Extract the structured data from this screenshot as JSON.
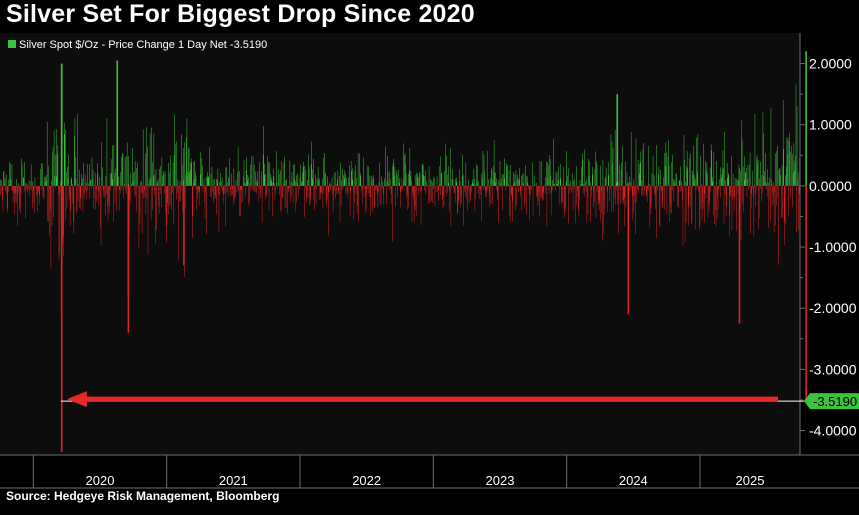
{
  "title": "Silver Set For Biggest Drop Since 2020",
  "source": "Source: Hedgeye Risk Management, Bloomberg",
  "colors": {
    "background": "#000000",
    "plot_background": "#0d0d0d",
    "up": "#3cc23c",
    "down": "#dd2323",
    "arrow": "#e62828",
    "reference_line": "#ffffff",
    "label_bg": "#3cc23c",
    "label_text": "#000000",
    "grid": "#6e6e6e",
    "axis_text": "#ffffff"
  },
  "chart_data": {
    "type": "bar",
    "title": "Silver Set For Biggest Drop Since 2020",
    "series": [
      {
        "name": "Silver Spot $/Oz - Price Change 1 Day Net",
        "last_value_label": "-3.5190",
        "last_value": -3.519
      }
    ],
    "legend": {
      "label": "Silver Spot $/Oz - Price Change 1 Day Net -3.5190",
      "placement": "top-left"
    },
    "y_ticks": [
      "2.0000",
      "1.0000",
      "0.0000",
      "-1.0000",
      "-2.0000",
      "-3.0000",
      "-4.0000"
    ],
    "y_tick_values": [
      2,
      1,
      0,
      -1,
      -2,
      -3,
      -4
    ],
    "ylim": [
      -4.4,
      2.5
    ],
    "x_tick_labels": [
      "2020",
      "2021",
      "2022",
      "2023",
      "2024",
      "2025"
    ],
    "x_range": [
      "2019-10",
      "2025-10"
    ],
    "reference_value": -3.519,
    "reference_value_label": "-3.5190",
    "annotation": "arrow pointing left along -3.5190 to the March 2020 drop",
    "notable_points": [
      {
        "date": "2020-03",
        "value": 1.95
      },
      {
        "date": "2020-03",
        "value": 2.0
      },
      {
        "date": "2020-03",
        "value": -4.35
      },
      {
        "date": "2020-03",
        "value": -2.1
      },
      {
        "date": "2020-08",
        "value": 2.05
      },
      {
        "date": "2020-09",
        "value": -2.4
      },
      {
        "date": "2020-09",
        "value": -1.8
      },
      {
        "date": "2021-02",
        "value": -1.3
      },
      {
        "date": "2024-05",
        "value": 1.5
      },
      {
        "date": "2024-06",
        "value": -2.1
      },
      {
        "date": "2025-04",
        "value": -2.25
      },
      {
        "date": "2025-10",
        "value": 2.2
      },
      {
        "date": "2025-10",
        "value": -3.519
      }
    ]
  }
}
